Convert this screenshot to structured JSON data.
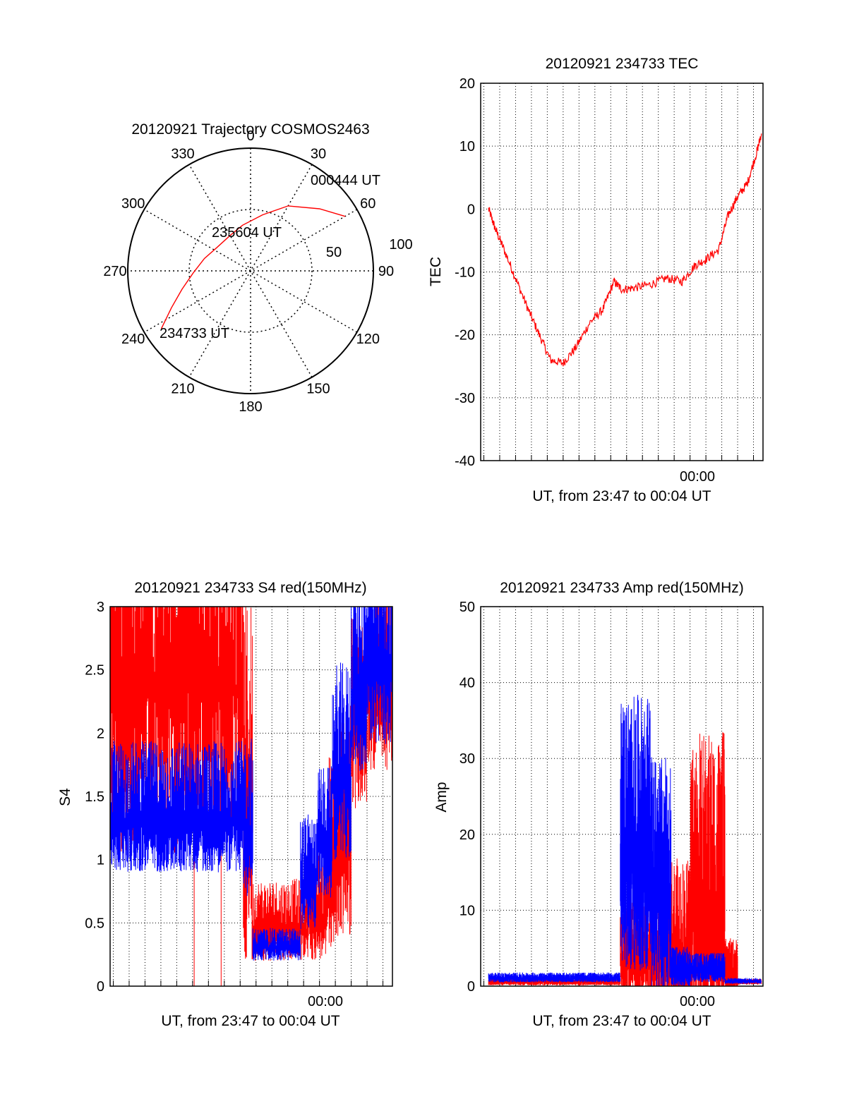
{
  "colors": {
    "red": "#ff0000",
    "blue": "#0000ff",
    "axis": "#000000"
  },
  "chart_data": [
    {
      "id": "trajectory",
      "type": "polar",
      "title": "20120921 Trajectory COSMOS2463",
      "angle_labels": [
        "0",
        "30",
        "60",
        "90",
        "120",
        "150",
        "180",
        "210",
        "240",
        "270",
        "300",
        "330"
      ],
      "radial_labels": [
        "50",
        "100"
      ],
      "annotations": [
        {
          "label": "000444 UT",
          "az": 60,
          "r": 78
        },
        {
          "label": "235604 UT",
          "az": 330,
          "r": 40
        },
        {
          "label": "234733 UT",
          "az": 240,
          "r": 83
        }
      ],
      "series": [
        {
          "color": "red",
          "azel": [
            [
              237,
              78
            ],
            [
              245,
              64
            ],
            [
              255,
              52
            ],
            [
              268,
              42
            ],
            [
              285,
              35
            ],
            [
              305,
              30
            ],
            [
              330,
              30
            ],
            [
              350,
              34
            ],
            [
              12,
              42
            ],
            [
              30,
              55
            ],
            [
              48,
              68
            ],
            [
              60,
              80
            ]
          ]
        }
      ]
    },
    {
      "id": "tec",
      "type": "line",
      "title": "20120921 234733 TEC",
      "ylabel": "TEC",
      "xlabel": "UT, from 23:47 to 00:04 UT",
      "xtick_label": "00:00",
      "ylim": [
        -40,
        20
      ],
      "yticks": [
        -40,
        -30,
        -20,
        -10,
        0,
        10,
        20
      ],
      "xlim_min": [
        -13.2,
        4.6
      ],
      "series": [
        {
          "color": "red",
          "points": [
            [
              -12.7,
              0
            ],
            [
              -12.3,
              -3
            ],
            [
              -11.8,
              -6
            ],
            [
              -11.0,
              -11
            ],
            [
              -10.2,
              -16
            ],
            [
              -9.5,
              -20
            ],
            [
              -8.8,
              -24
            ],
            [
              -8.0,
              -24.5
            ],
            [
              -7.2,
              -22
            ],
            [
              -6.3,
              -18
            ],
            [
              -5.5,
              -16
            ],
            [
              -4.8,
              -11.5
            ],
            [
              -4.3,
              -12.8
            ],
            [
              -3.5,
              -12.5
            ],
            [
              -2.5,
              -12
            ],
            [
              -1.5,
              -11
            ],
            [
              -0.5,
              -11.5
            ],
            [
              0.3,
              -9
            ],
            [
              1.0,
              -8
            ],
            [
              1.8,
              -6.5
            ],
            [
              2.4,
              -1
            ],
            [
              3.0,
              2
            ],
            [
              3.6,
              4
            ],
            [
              4.2,
              9
            ],
            [
              4.5,
              12
            ]
          ]
        }
      ]
    },
    {
      "id": "s4",
      "type": "line",
      "title": "20120921 234733 S4 red(150MHz)",
      "ylabel": "S4",
      "xlabel": "UT, from 23:47 to 00:04 UT",
      "xtick_label": "00:00",
      "ylim": [
        0,
        3
      ],
      "yticks": [
        0,
        0.5,
        1,
        1.5,
        2,
        2.5,
        3
      ],
      "xlim_min": [
        -13.2,
        4.6
      ],
      "series": [
        {
          "name": "red",
          "color": "red",
          "segments": [
            [
              -13.2,
              -4.8,
              2.35,
              1.3
            ],
            [
              -4.8,
              -4.2,
              1.3,
              1.1
            ],
            [
              -4.2,
              -0.8,
              0.45,
              0.25
            ],
            [
              -0.8,
              0.5,
              0.55,
              0.35
            ],
            [
              0.5,
              1.2,
              0.9,
              0.6
            ],
            [
              1.2,
              2.0,
              1.1,
              0.7
            ],
            [
              2.0,
              3.0,
              2.0,
              0.6
            ],
            [
              3.0,
              4.6,
              2.3,
              0.6
            ]
          ]
        },
        {
          "name": "blue",
          "color": "blue",
          "segments": [
            [
              -13.2,
              -4.8,
              1.3,
              0.4
            ],
            [
              -4.8,
              -4.2,
              1.2,
              0.5
            ],
            [
              -4.2,
              -1.2,
              0.3,
              0.1
            ],
            [
              -1.2,
              -0.2,
              0.8,
              0.35
            ],
            [
              -0.2,
              0.8,
              1.1,
              0.4
            ],
            [
              0.8,
              2.0,
              1.6,
              0.6
            ],
            [
              2.0,
              3.0,
              2.3,
              0.6
            ],
            [
              3.0,
              4.6,
              2.5,
              0.6
            ]
          ]
        }
      ]
    },
    {
      "id": "amp",
      "type": "line",
      "title": "20120921 234733 Amp red(150MHz)",
      "ylabel": "Amp",
      "xlabel": "UT, from 23:47 to 00:04 UT",
      "xtick_label": "00:00",
      "ylim": [
        0,
        50
      ],
      "yticks": [
        0,
        10,
        20,
        30,
        40,
        50
      ],
      "xlim_min": [
        -13.2,
        4.6
      ],
      "series": [
        {
          "name": "red",
          "color": "red",
          "segments": [
            [
              -12.7,
              -4.4,
              0.5,
              0.4
            ],
            [
              -4.4,
              -1.2,
              3.0,
              5.0
            ],
            [
              -1.2,
              0.0,
              2.5,
              9.0
            ],
            [
              0.0,
              2.2,
              8.0,
              16.0
            ],
            [
              2.2,
              3.0,
              1.5,
              3.0
            ],
            [
              3.0,
              4.5,
              0.5,
              0.3
            ]
          ]
        },
        {
          "name": "blue",
          "color": "blue",
          "segments": [
            [
              -12.7,
              -4.4,
              1.0,
              0.5
            ],
            [
              -4.4,
              -2.5,
              16.0,
              14.0
            ],
            [
              -2.5,
              -1.2,
              11.0,
              12.0
            ],
            [
              -1.2,
              0.0,
              2.0,
              2.0
            ],
            [
              0.0,
              2.2,
              2.0,
              1.5
            ],
            [
              2.2,
              4.5,
              0.6,
              0.3
            ]
          ]
        }
      ]
    }
  ]
}
